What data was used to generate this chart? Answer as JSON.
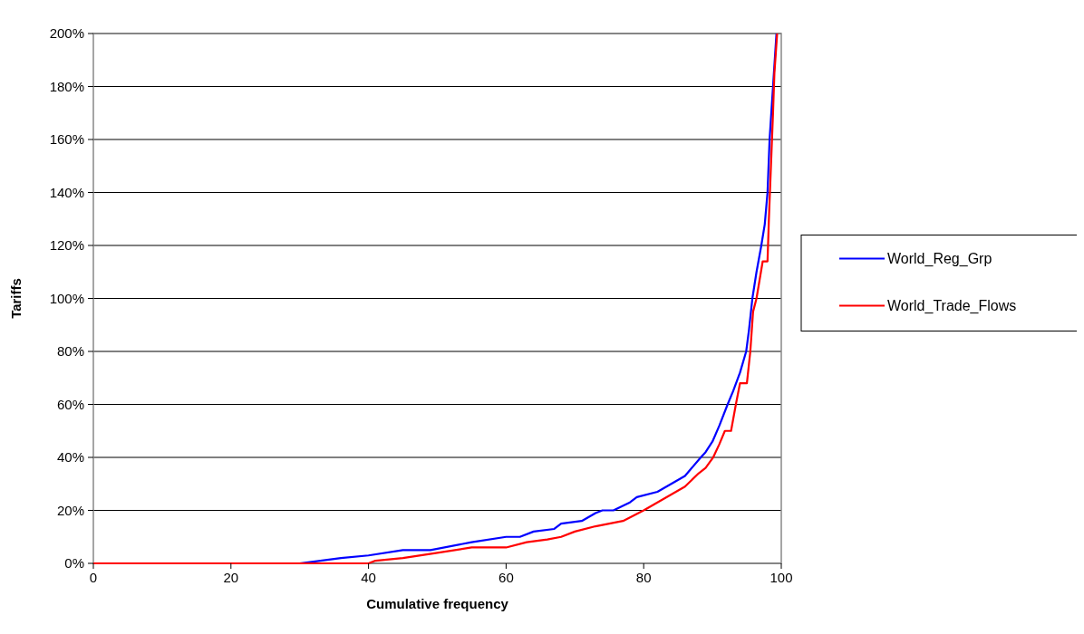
{
  "chart_data": {
    "type": "line",
    "xlabel": "Cumulative frequency",
    "ylabel": "Tariffs",
    "xlim": [
      0,
      100
    ],
    "xticks": [
      0,
      20,
      40,
      60,
      80,
      100
    ],
    "ylim": [
      0,
      200
    ],
    "yticks": [
      {
        "value": 0,
        "label": "0%"
      },
      {
        "value": 20,
        "label": "20%"
      },
      {
        "value": 40,
        "label": "40%"
      },
      {
        "value": 60,
        "label": "60%"
      },
      {
        "value": 80,
        "label": "80%"
      },
      {
        "value": 100,
        "label": "100%"
      },
      {
        "value": 120,
        "label": "120%"
      },
      {
        "value": 140,
        "label": "140%"
      },
      {
        "value": 160,
        "label": "160%"
      },
      {
        "value": 180,
        "label": "180%"
      },
      {
        "value": 200,
        "label": "200%"
      }
    ],
    "grid": "y",
    "legend": "right",
    "marker": "none",
    "line_style": "solid",
    "series": [
      {
        "name": "World_Reg_Grp",
        "color": "#0000ff",
        "x": [
          0,
          30,
          33,
          36,
          40,
          45,
          49,
          55,
          60,
          62,
          64,
          67,
          68,
          71,
          73,
          74,
          75.6,
          78,
          79,
          82,
          84,
          86,
          88.3,
          89,
          90,
          91,
          92.2,
          93,
          94,
          94.9,
          95.3,
          95.8,
          96.4,
          97.1,
          97.6,
          98,
          98.3,
          98.8,
          99.3
        ],
        "values": [
          0,
          0,
          1,
          2,
          3,
          5,
          5,
          8,
          10,
          10,
          12,
          13,
          15,
          16,
          19,
          20,
          20,
          23,
          25,
          27,
          30,
          33,
          40,
          42,
          46,
          52,
          60,
          65,
          72,
          80,
          88,
          100,
          110,
          120,
          128,
          140,
          160,
          180,
          200
        ]
      },
      {
        "name": "World_Trade_Flows",
        "color": "#ff0000",
        "x": [
          0,
          40,
          41,
          45,
          50,
          55,
          60,
          63,
          66,
          68,
          70,
          73,
          75,
          77,
          80,
          82,
          84,
          86,
          88,
          89,
          90.1,
          91,
          91.8,
          92.7,
          93.4,
          94,
          95,
          95.5,
          95.9,
          96.4,
          97.3,
          98,
          98.2,
          98.5,
          98.8,
          99,
          99.4
        ],
        "values": [
          0,
          0,
          1,
          2,
          4,
          6,
          6,
          8,
          9,
          10,
          12,
          14,
          15,
          16,
          20,
          23,
          26,
          29,
          34,
          36,
          40,
          45,
          50,
          50,
          60,
          68,
          68,
          80,
          95,
          100,
          114,
          114,
          130,
          150,
          170,
          185,
          200
        ]
      }
    ]
  }
}
